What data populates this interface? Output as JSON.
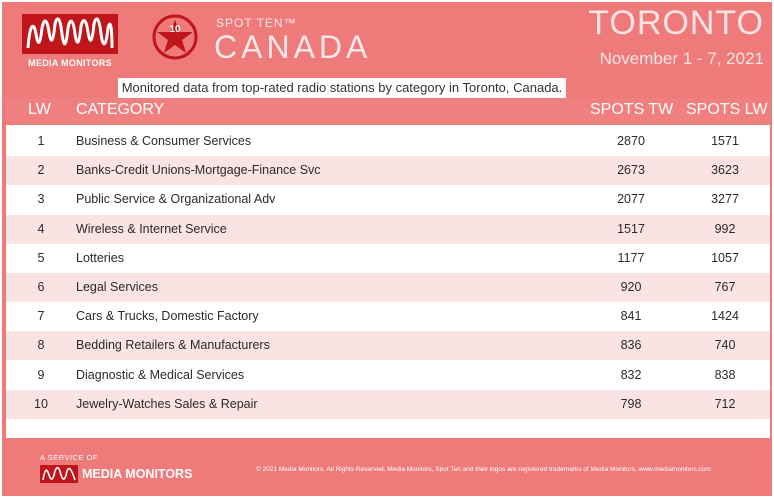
{
  "header": {
    "mm_logo_label": "MEDIA MONITORS",
    "badge_number": "10",
    "spot_ten": "SPOT TEN™",
    "country": "CANADA",
    "city": "TORONTO",
    "dates": "November 1 - 7, 2021"
  },
  "subtitle": "Monitored data from top-rated radio stations by category in Toronto, Canada.",
  "table": {
    "headers": {
      "lw": "LW",
      "category": "CATEGORY",
      "spots_tw": "SPOTS TW",
      "spots_lw": "SPOTS LW"
    },
    "rows": [
      {
        "lw": "1",
        "category": "Business & Consumer Services",
        "spots_tw": "2870",
        "spots_lw": "1571"
      },
      {
        "lw": "2",
        "category": "Banks-Credit Unions-Mortgage-Finance Svc",
        "spots_tw": "2673",
        "spots_lw": "3623"
      },
      {
        "lw": "3",
        "category": "Public Service & Organizational Adv",
        "spots_tw": "2077",
        "spots_lw": "3277"
      },
      {
        "lw": "4",
        "category": "Wireless & Internet Service",
        "spots_tw": "1517",
        "spots_lw": "992"
      },
      {
        "lw": "5",
        "category": "Lotteries",
        "spots_tw": "1177",
        "spots_lw": "1057"
      },
      {
        "lw": "6",
        "category": "Legal Services",
        "spots_tw": "920",
        "spots_lw": "767"
      },
      {
        "lw": "7",
        "category": "Cars & Trucks, Domestic Factory",
        "spots_tw": "841",
        "spots_lw": "1424"
      },
      {
        "lw": "8",
        "category": "Bedding Retailers & Manufacturers",
        "spots_tw": "836",
        "spots_lw": "740"
      },
      {
        "lw": "9",
        "category": "Diagnostic & Medical Services",
        "spots_tw": "832",
        "spots_lw": "838"
      },
      {
        "lw": "10",
        "category": "Jewelry-Watches Sales & Repair",
        "spots_tw": "798",
        "spots_lw": "712"
      }
    ]
  },
  "footer": {
    "service_of": "A SERVICE OF",
    "brand": "MEDIA MONITORS",
    "copyright": "© 2021 Media Monitors. All Rights Reserved. Media Monitors, Spot Ten and their logos are registered trademarks of Media Monitors. www.mediamonitors.com"
  },
  "colors": {
    "background": "#ee7a7a",
    "header_row": "#f08080",
    "row_alt": "#f9e3e3",
    "logo_red": "#c0151b"
  },
  "icons": [
    "media-monitors-wave-icon",
    "spot-ten-star-badge-icon"
  ]
}
